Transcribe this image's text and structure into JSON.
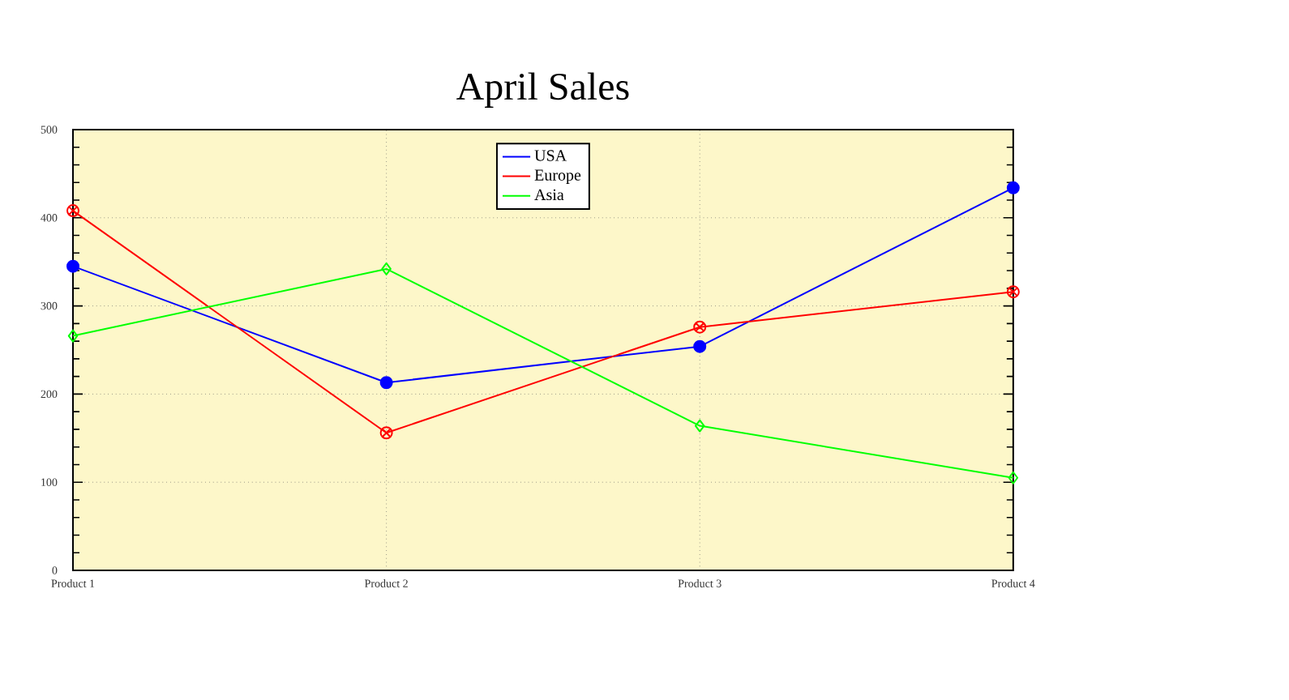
{
  "chart_data": {
    "type": "line",
    "title": "April Sales",
    "categories": [
      "Product 1",
      "Product 2",
      "Product 3",
      "Product 4"
    ],
    "series": [
      {
        "name": "USA",
        "color": "#0000ff",
        "marker": "circle",
        "values": [
          345,
          213,
          254,
          434
        ]
      },
      {
        "name": "Europe",
        "color": "#ff0000",
        "marker": "cross",
        "values": [
          408,
          156,
          276,
          316
        ]
      },
      {
        "name": "Asia",
        "color": "#00ff00",
        "marker": "diamond",
        "values": [
          266,
          342,
          164,
          105
        ]
      }
    ],
    "ylim": [
      0,
      500
    ],
    "yticks": [
      0,
      100,
      200,
      300,
      400,
      500
    ],
    "grid": true,
    "legend": "top",
    "line_style": "solid"
  }
}
